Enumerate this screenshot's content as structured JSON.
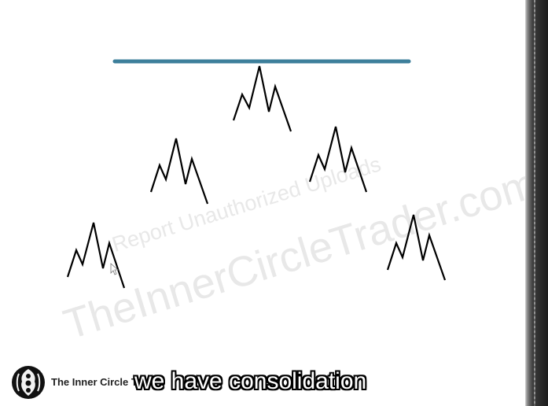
{
  "watermark": {
    "line1": "Report Unauthorized Uploads",
    "line2": "TheInnerCircleTrader.com"
  },
  "branding": {
    "name": "The Inner Circle Trader",
    "logo_icon": "ict-emblem-icon"
  },
  "subtitle": {
    "text": "we have consolidation"
  },
  "colors": {
    "resistance_line": "#3d7f9b",
    "price_swings": "#000000",
    "slide_background": "#ffffff"
  }
}
